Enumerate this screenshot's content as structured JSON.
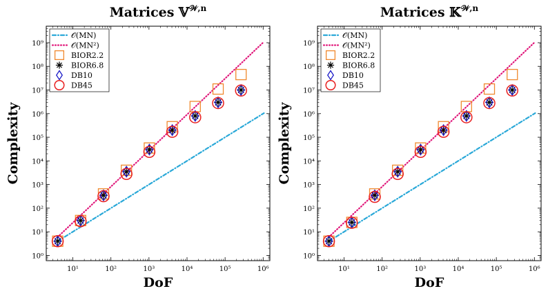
{
  "chart_data": [
    {
      "type": "scatter",
      "title": "Matrices 𝕍",
      "title_sup": "𝒲,n",
      "xlabel": "DoF",
      "ylabel": "Complexity",
      "xscale": "log",
      "yscale": "log",
      "xlim": [
        2,
        1500000
      ],
      "ylim": [
        0.6,
        5000000000
      ],
      "xticks": [
        10,
        100,
        1000,
        10000,
        100000,
        1000000
      ],
      "yticks": [
        1,
        10,
        100,
        1000,
        10000,
        100000,
        1000000,
        10000000,
        100000000,
        1000000000
      ],
      "legend_position": "top-left",
      "series": [
        {
          "name": "𝒪(MN)",
          "kind": "line",
          "style": "dashdot",
          "color": "#29a8d8",
          "x": [
            4,
            1048576
          ],
          "y": [
            4,
            1048576
          ]
        },
        {
          "name": "𝒪(MN²)",
          "kind": "line",
          "style": "dotted",
          "color": "#e0177a",
          "x": [
            4,
            1048576
          ],
          "y": [
            6,
            1100000000
          ]
        },
        {
          "name": "BIOR2.2",
          "kind": "marker",
          "marker": "square",
          "color": "#f0892e",
          "x": [
            4,
            16,
            64,
            256,
            1024,
            4096,
            16384,
            65536,
            262144
          ],
          "y": [
            4,
            30,
            400,
            4000,
            35000,
            280000,
            2000000,
            11000000,
            45000000
          ]
        },
        {
          "name": "BIOR6.8",
          "kind": "marker",
          "marker": "asterisk",
          "color": "#000000",
          "x": [
            4,
            16,
            64,
            256,
            1024,
            4096,
            16384,
            65536,
            262144
          ],
          "y": [
            4,
            30,
            350,
            3500,
            30000,
            200000,
            800000,
            3000000,
            10000000
          ]
        },
        {
          "name": "DB10",
          "kind": "marker",
          "marker": "diamond",
          "color": "#1a1ac8",
          "x": [
            4,
            16,
            64,
            256,
            1024,
            4096,
            16384,
            65536,
            262144
          ],
          "y": [
            4,
            30,
            350,
            3500,
            30000,
            200000,
            800000,
            3000000,
            10000000
          ]
        },
        {
          "name": "DB45",
          "kind": "marker",
          "marker": "circle",
          "color": "#e81e1e",
          "x": [
            4,
            16,
            64,
            256,
            1024,
            4096,
            16384,
            65536,
            262144
          ],
          "y": [
            4,
            28,
            320,
            2800,
            24000,
            170000,
            700000,
            2800000,
            9500000
          ]
        }
      ]
    },
    {
      "type": "scatter",
      "title": "Matrices 𝕂",
      "title_sup": "𝒲,n",
      "xlabel": "DoF",
      "ylabel": "Complexity",
      "xscale": "log",
      "yscale": "log",
      "xlim": [
        2,
        1500000
      ],
      "ylim": [
        0.6,
        5000000000
      ],
      "xticks": [
        10,
        100,
        1000,
        10000,
        100000,
        1000000
      ],
      "yticks": [
        1,
        10,
        100,
        1000,
        10000,
        100000,
        1000000,
        10000000,
        100000000,
        1000000000
      ],
      "legend_position": "top-left",
      "series": [
        {
          "name": "𝒪(MN)",
          "kind": "line",
          "style": "dashdot",
          "color": "#29a8d8",
          "x": [
            4,
            1048576
          ],
          "y": [
            4,
            1048576
          ]
        },
        {
          "name": "𝒪(MN²)",
          "kind": "line",
          "style": "dotted",
          "color": "#e0177a",
          "x": [
            4,
            1048576
          ],
          "y": [
            6,
            1100000000
          ]
        },
        {
          "name": "BIOR2.2",
          "kind": "marker",
          "marker": "square",
          "color": "#f0892e",
          "x": [
            4,
            16,
            64,
            256,
            1024,
            4096,
            16384,
            65536,
            262144
          ],
          "y": [
            4,
            25,
            400,
            4000,
            35000,
            280000,
            2000000,
            11000000,
            45000000
          ]
        },
        {
          "name": "BIOR6.8",
          "kind": "marker",
          "marker": "asterisk",
          "color": "#000000",
          "x": [
            4,
            16,
            64,
            256,
            1024,
            4096,
            16384,
            65536,
            262144
          ],
          "y": [
            4,
            25,
            350,
            3500,
            30000,
            200000,
            800000,
            3000000,
            10000000
          ]
        },
        {
          "name": "DB10",
          "kind": "marker",
          "marker": "diamond",
          "color": "#1a1ac8",
          "x": [
            4,
            16,
            64,
            256,
            1024,
            4096,
            16384,
            65536,
            262144
          ],
          "y": [
            4,
            25,
            350,
            3500,
            30000,
            200000,
            800000,
            3000000,
            10000000
          ]
        },
        {
          "name": "DB45",
          "kind": "marker",
          "marker": "circle",
          "color": "#e81e1e",
          "x": [
            4,
            16,
            64,
            256,
            1024,
            4096,
            16384,
            65536,
            262144
          ],
          "y": [
            4,
            24,
            300,
            2800,
            24000,
            170000,
            700000,
            2800000,
            9500000
          ]
        }
      ]
    }
  ]
}
